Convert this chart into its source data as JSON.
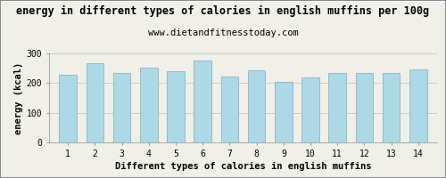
{
  "title": "energy in different types of calories in english muffins per 100g",
  "subtitle": "www.dietandfitnesstoday.com",
  "xlabel": "Different types of calories in english muffins",
  "ylabel": "energy (kcal)",
  "categories": [
    1,
    2,
    3,
    4,
    5,
    6,
    7,
    8,
    9,
    10,
    11,
    12,
    13,
    14
  ],
  "values": [
    227,
    268,
    235,
    252,
    240,
    277,
    221,
    244,
    203,
    219,
    235,
    235,
    235,
    246
  ],
  "bar_color": "#add8e6",
  "bar_edge_color": "#8ab4c8",
  "ylim": [
    0,
    300
  ],
  "yticks": [
    0,
    100,
    200,
    300
  ],
  "background_color": "#f0f0e8",
  "plot_bg_color": "#f0f0e8",
  "grid_color": "#bbbbbb",
  "title_fontsize": 8.5,
  "subtitle_fontsize": 7.5,
  "axis_label_fontsize": 7.5,
  "tick_fontsize": 7,
  "border_color": "#888888"
}
